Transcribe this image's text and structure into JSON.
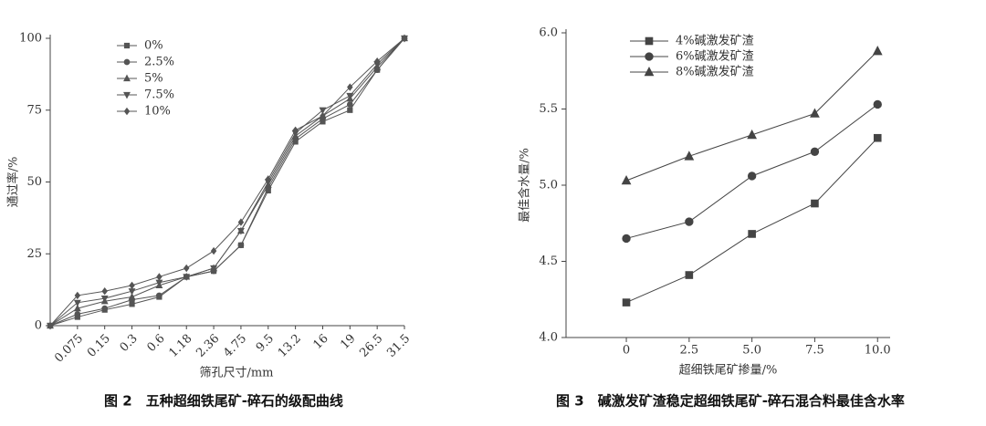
{
  "chart_data": [
    {
      "type": "line",
      "caption": "图 2　五种超细铁尾矿-碎石的级配曲线",
      "x_label": "筛孔尺寸/mm",
      "y_label": "通过率/%",
      "categories": [
        null,
        "0.075",
        "0.15",
        "0.3",
        "0.6",
        "1.18",
        "2.36",
        "4.75",
        "9.5",
        "13.2",
        "16",
        "19",
        "26.5",
        "31.5"
      ],
      "ylim": [
        0,
        100
      ],
      "yticks": [
        0,
        25,
        50,
        75,
        100
      ],
      "series": [
        {
          "name": "0%",
          "color": "#555555",
          "marker": "square",
          "values": [
            0,
            3,
            5.5,
            7.5,
            10,
            17,
            19,
            28,
            47,
            64,
            71,
            75,
            89,
            100
          ]
        },
        {
          "name": "2.5%",
          "color": "#555555",
          "marker": "circle",
          "values": [
            0,
            4,
            6,
            9,
            10.5,
            17,
            19,
            28,
            48,
            65,
            72,
            77,
            89,
            100
          ]
        },
        {
          "name": "5%",
          "color": "#555555",
          "marker": "triangle",
          "values": [
            0,
            6,
            8.5,
            10,
            14,
            17,
            20,
            33,
            49,
            66,
            73,
            79,
            90,
            100
          ]
        },
        {
          "name": "7.5%",
          "color": "#555555",
          "marker": "tri-down",
          "values": [
            0,
            8,
            9.5,
            12,
            15,
            17,
            20,
            33,
            50,
            67,
            75,
            80,
            91,
            100
          ]
        },
        {
          "name": "10%",
          "color": "#555555",
          "marker": "diamond",
          "values": [
            0,
            10.5,
            12,
            14,
            17,
            20,
            26,
            36,
            51,
            68,
            73,
            83,
            92,
            100
          ]
        }
      ]
    },
    {
      "type": "line",
      "caption": "图 3　碱激发矿渣稳定超细铁尾矿-碎石混合料最佳含水率",
      "x_label": "超细铁尾矿掺量/%",
      "y_label": "最佳含水量/%",
      "x": [
        0,
        2.5,
        5,
        7.5,
        10
      ],
      "xlim": [
        -2.4,
        10.5
      ],
      "xticks": [
        0,
        2.5,
        {
          "value": 5,
          "label": "5.0"
        },
        7.5,
        {
          "value": 10,
          "label": "10.0"
        }
      ],
      "ylim": [
        4.0,
        6.0
      ],
      "yticks": [
        {
          "value": 4,
          "label": "4.0"
        },
        4.5,
        {
          "value": 5,
          "label": "5.0"
        },
        5.5,
        {
          "value": 6,
          "label": "6.0"
        }
      ],
      "series": [
        {
          "name": "4%碱激发矿渣",
          "color": "#444444",
          "marker": "square",
          "values": [
            4.23,
            4.41,
            4.68,
            4.88,
            5.31
          ]
        },
        {
          "name": "6%碱激发矿渣",
          "color": "#444444",
          "marker": "circle",
          "values": [
            4.65,
            4.76,
            5.06,
            5.22,
            5.53
          ]
        },
        {
          "name": "8%碱激发矿渣",
          "color": "#444444",
          "marker": "triangle",
          "values": [
            5.03,
            5.19,
            5.33,
            5.47,
            5.88
          ]
        }
      ]
    }
  ]
}
